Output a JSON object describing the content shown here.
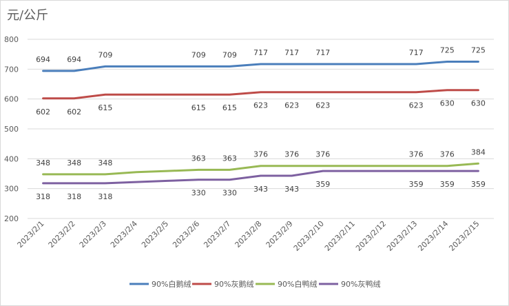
{
  "unit_label": "元/公斤",
  "chart_data": {
    "type": "line",
    "ylabel": "元/公斤",
    "ylim": [
      200,
      800
    ],
    "yticks": [
      200,
      300,
      400,
      500,
      600,
      700,
      800
    ],
    "grid": "horizontal",
    "legend": "bottom",
    "categories": [
      "2023/2/1",
      "2023/2/2",
      "2023/2/3",
      "2023/2/4",
      "2023/2/5",
      "2023/2/6",
      "2023/2/7",
      "2023/2/8",
      "2023/2/9",
      "2023/2/10",
      "2023/2/11",
      "2023/2/12",
      "2023/2/13",
      "2023/2/14",
      "2023/2/15"
    ],
    "series": [
      {
        "name": "90%白鹅绒",
        "color": "#4a7ebb",
        "values": [
          694,
          694,
          709,
          709,
          709,
          709,
          709,
          717,
          717,
          717,
          717,
          717,
          717,
          725,
          725
        ],
        "labels": [
          "694",
          "694",
          "709",
          null,
          null,
          "709",
          "709",
          "717",
          "717",
          "717",
          null,
          null,
          "717",
          "725",
          "725"
        ],
        "label_pos": "above"
      },
      {
        "name": "90%灰鹅绒",
        "color": "#be4b48",
        "values": [
          602,
          602,
          615,
          615,
          615,
          615,
          615,
          623,
          623,
          623,
          623,
          623,
          623,
          630,
          630
        ],
        "labels": [
          "602",
          "602",
          "615",
          null,
          null,
          "615",
          "615",
          "623",
          "623",
          "623",
          null,
          null,
          "623",
          "630",
          "630"
        ],
        "label_pos": "below"
      },
      {
        "name": "90%白鸭绒",
        "color": "#98b954",
        "values": [
          348,
          348,
          348,
          355,
          359,
          363,
          363,
          376,
          376,
          376,
          376,
          376,
          376,
          376,
          384
        ],
        "labels": [
          "348",
          "348",
          "348",
          null,
          null,
          "363",
          "363",
          "376",
          "376",
          "376",
          null,
          null,
          "376",
          "376",
          "384"
        ],
        "label_pos": "above"
      },
      {
        "name": "90%灰鸭绒",
        "color": "#7d60a0",
        "values": [
          318,
          318,
          318,
          322,
          326,
          330,
          330,
          343,
          343,
          359,
          359,
          359,
          359,
          359,
          359
        ],
        "labels": [
          "318",
          "318",
          "318",
          null,
          null,
          "330",
          "330",
          "343",
          "343",
          "359",
          null,
          null,
          "359",
          "359",
          "359"
        ],
        "label_pos": "below"
      }
    ]
  }
}
